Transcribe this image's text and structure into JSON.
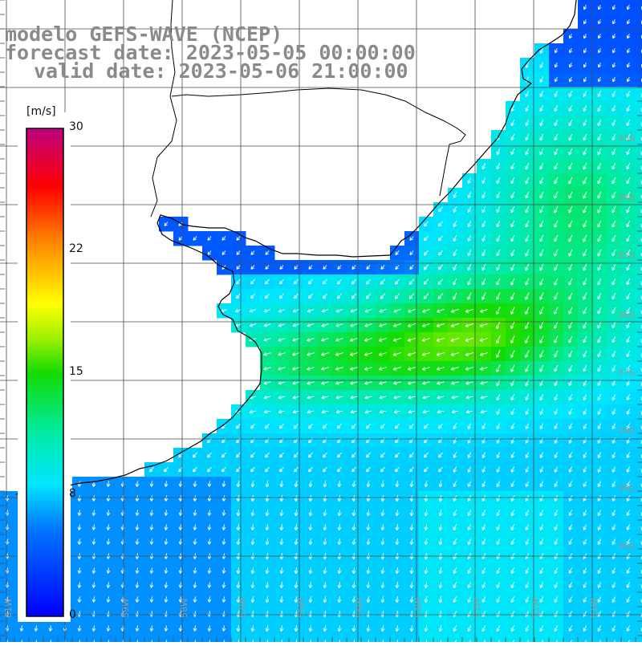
{
  "titles": {
    "line1": "modelo GEFS-WAVE (NCEP)",
    "line2": "forecast date: 2023-05-05 00:00:00",
    "line3": "valid date: 2023-05-06 21:00:00"
  },
  "colorbar": {
    "unit": "[m/s]",
    "ticks": [
      "30",
      "22",
      "15",
      "8",
      "0"
    ],
    "stops": [
      "#0000ff",
      "#00bfff",
      "#00ffff",
      "#00e000",
      "#ffff00",
      "#ff8000",
      "#ff0000",
      "#c00080"
    ]
  },
  "map": {
    "variable": "wind speed with direction arrows",
    "land_color": "#ffffff",
    "coast_color": "#000000",
    "grid_color": "#555555",
    "lat_labels": [
      "33S",
      "34S",
      "35S",
      "36S",
      "37S",
      "38S",
      "39S",
      "40S"
    ],
    "lon_labels": [
      "61W",
      "60W",
      "59W",
      "58W",
      "57W",
      "56W",
      "55W",
      "54W",
      "53W",
      "52W",
      "51W"
    ]
  }
}
